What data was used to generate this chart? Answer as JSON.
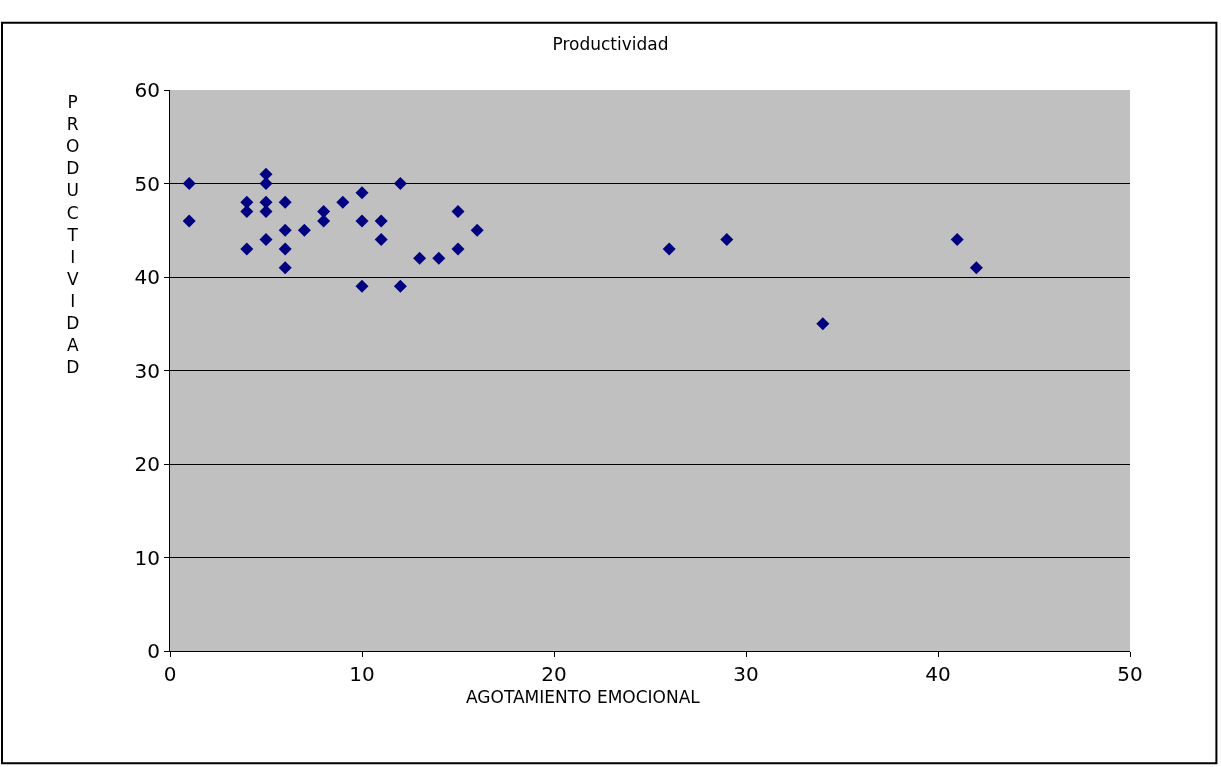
{
  "chart_data": {
    "type": "scatter",
    "title": "Productividad",
    "xlabel": "AGOTAMIENTO EMOCIONAL",
    "ylabel": "PRODUCTIVIDAD",
    "series": [
      {
        "color": "#000080",
        "x": [
          1,
          1,
          4,
          4,
          4,
          5,
          5,
          5,
          5,
          5,
          6,
          6,
          6,
          6,
          7,
          8,
          8,
          9,
          10,
          10,
          10,
          11,
          11,
          12,
          12,
          13,
          14,
          15,
          15,
          16,
          26,
          29,
          34,
          41,
          42
        ],
        "values": [
          50,
          46,
          48,
          47,
          43,
          51,
          50,
          48,
          47,
          44,
          48,
          45,
          43,
          41,
          45,
          47,
          46,
          48,
          49,
          46,
          39,
          46,
          44,
          50,
          39,
          42,
          42,
          47,
          43,
          45,
          43,
          44,
          35,
          44,
          41
        ]
      }
    ],
    "marker": "diamond",
    "xlim": [
      0,
      50
    ],
    "xticks": [
      0,
      10,
      20,
      30,
      40,
      50
    ],
    "ylim": [
      0,
      60
    ],
    "yticks": [
      0,
      10,
      20,
      30,
      40,
      50,
      60
    ],
    "grid": "y"
  }
}
